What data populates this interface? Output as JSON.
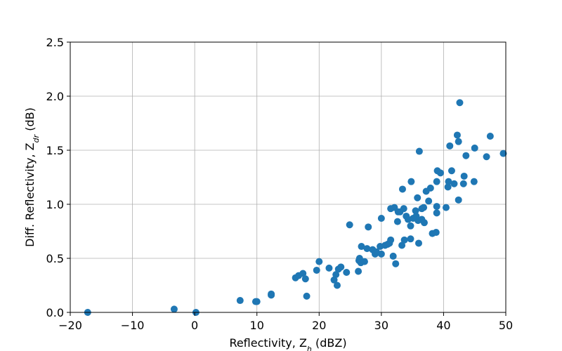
{
  "chart_data": {
    "type": "scatter",
    "title": "",
    "xlabel": {
      "main": "Reflectivity, Z",
      "sub": "h",
      "unit": " (dBZ)"
    },
    "ylabel": {
      "main": "Diff. Reflectivity, Z",
      "sub": "dr",
      "unit": " (dB)"
    },
    "xlim": [
      -20,
      50
    ],
    "ylim": [
      0,
      2.5
    ],
    "xticks": [
      -20,
      -10,
      0,
      10,
      20,
      30,
      40,
      50
    ],
    "xtick_labels": [
      "−20",
      "−10",
      "0",
      "10",
      "20",
      "30",
      "40",
      "50"
    ],
    "yticks": [
      0.0,
      0.5,
      1.0,
      1.5,
      2.0,
      2.5
    ],
    "ytick_labels": [
      "0.0",
      "0.5",
      "1.0",
      "1.5",
      "2.0",
      "2.5"
    ],
    "grid": true,
    "marker_color": "#1f77b4",
    "points": [
      [
        -17.2,
        0.0
      ],
      [
        -3.3,
        0.03
      ],
      [
        0.2,
        0.0
      ],
      [
        7.3,
        0.11
      ],
      [
        9.8,
        0.1
      ],
      [
        10.0,
        0.1
      ],
      [
        12.3,
        0.16
      ],
      [
        12.3,
        0.17
      ],
      [
        16.2,
        0.32
      ],
      [
        16.7,
        0.34
      ],
      [
        17.4,
        0.36
      ],
      [
        17.8,
        0.31
      ],
      [
        18.0,
        0.15
      ],
      [
        19.6,
        0.39
      ],
      [
        20.0,
        0.47
      ],
      [
        21.6,
        0.41
      ],
      [
        22.4,
        0.3
      ],
      [
        22.7,
        0.35
      ],
      [
        22.9,
        0.25
      ],
      [
        23.1,
        0.4
      ],
      [
        23.5,
        0.42
      ],
      [
        24.4,
        0.37
      ],
      [
        24.9,
        0.81
      ],
      [
        26.3,
        0.38
      ],
      [
        26.4,
        0.48
      ],
      [
        26.5,
        0.5
      ],
      [
        26.7,
        0.46
      ],
      [
        26.8,
        0.61
      ],
      [
        27.3,
        0.47
      ],
      [
        27.7,
        0.59
      ],
      [
        27.9,
        0.79
      ],
      [
        28.6,
        0.58
      ],
      [
        29.0,
        0.54
      ],
      [
        29.2,
        0.56
      ],
      [
        29.8,
        0.61
      ],
      [
        30.0,
        0.54
      ],
      [
        30.0,
        0.87
      ],
      [
        30.6,
        0.62
      ],
      [
        31.0,
        0.63
      ],
      [
        31.3,
        0.64
      ],
      [
        31.5,
        0.67
      ],
      [
        31.5,
        0.96
      ],
      [
        31.9,
        0.52
      ],
      [
        32.1,
        0.97
      ],
      [
        32.3,
        0.45
      ],
      [
        32.6,
        0.84
      ],
      [
        32.7,
        0.93
      ],
      [
        33.0,
        0.93
      ],
      [
        33.3,
        0.62
      ],
      [
        33.4,
        1.14
      ],
      [
        33.6,
        0.96
      ],
      [
        33.7,
        0.67
      ],
      [
        34.0,
        0.89
      ],
      [
        34.3,
        0.86
      ],
      [
        34.7,
        0.8
      ],
      [
        34.7,
        0.68
      ],
      [
        34.8,
        1.21
      ],
      [
        35.1,
        0.87
      ],
      [
        35.5,
        0.94
      ],
      [
        35.6,
        0.89
      ],
      [
        35.8,
        1.06
      ],
      [
        35.9,
        0.85
      ],
      [
        36.0,
        0.64
      ],
      [
        36.1,
        1.49
      ],
      [
        36.5,
        0.86
      ],
      [
        36.5,
        0.96
      ],
      [
        36.8,
        0.97
      ],
      [
        36.9,
        0.83
      ],
      [
        37.2,
        1.12
      ],
      [
        37.6,
        1.03
      ],
      [
        37.9,
        1.15
      ],
      [
        38.2,
        0.73
      ],
      [
        38.8,
        0.74
      ],
      [
        38.9,
        0.92
      ],
      [
        38.9,
        0.98
      ],
      [
        38.9,
        1.21
      ],
      [
        39.0,
        1.31
      ],
      [
        39.5,
        1.29
      ],
      [
        40.4,
        0.97
      ],
      [
        40.7,
        1.16
      ],
      [
        40.8,
        1.21
      ],
      [
        41.0,
        1.54
      ],
      [
        41.3,
        1.31
      ],
      [
        41.7,
        1.19
      ],
      [
        42.2,
        1.64
      ],
      [
        42.4,
        1.04
      ],
      [
        42.4,
        1.58
      ],
      [
        42.6,
        1.94
      ],
      [
        43.2,
        1.19
      ],
      [
        43.3,
        1.26
      ],
      [
        43.6,
        1.45
      ],
      [
        44.9,
        1.21
      ],
      [
        45.0,
        1.52
      ],
      [
        46.9,
        1.44
      ],
      [
        47.5,
        1.63
      ],
      [
        49.6,
        1.47
      ]
    ]
  }
}
